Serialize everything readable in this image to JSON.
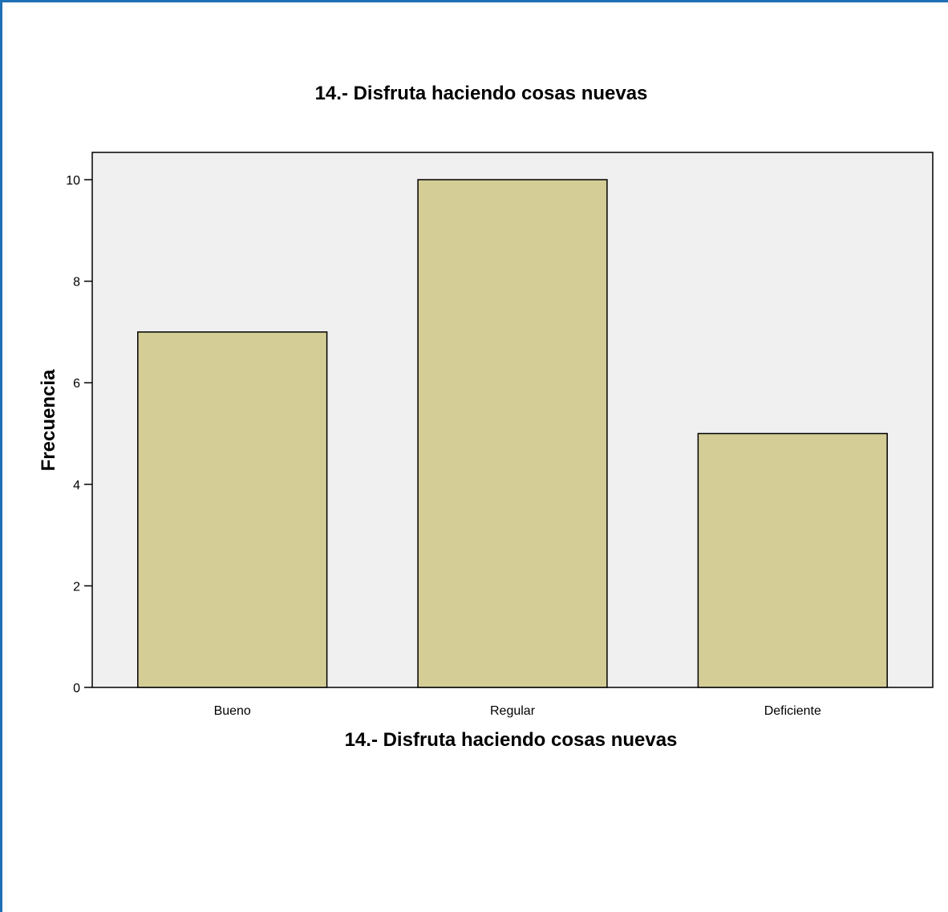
{
  "chart_data": {
    "type": "bar",
    "title": "14.- Disfruta haciendo cosas nuevas",
    "xlabel": "14.- Disfruta haciendo cosas nuevas",
    "ylabel": "Frecuencia",
    "categories": [
      "Bueno",
      "Regular",
      "Deficiente"
    ],
    "values": [
      7,
      10,
      5
    ],
    "ylim": [
      0,
      10.5
    ],
    "yticks": [
      "0",
      "2",
      "4",
      "6",
      "8",
      "10"
    ],
    "grid": false,
    "legend": "none",
    "colors": {
      "bar_fill": "#d4cd96",
      "bar_stroke": "#000000",
      "plot_background": "#f0f0f0",
      "frame_border": "#1f6fb4"
    }
  }
}
